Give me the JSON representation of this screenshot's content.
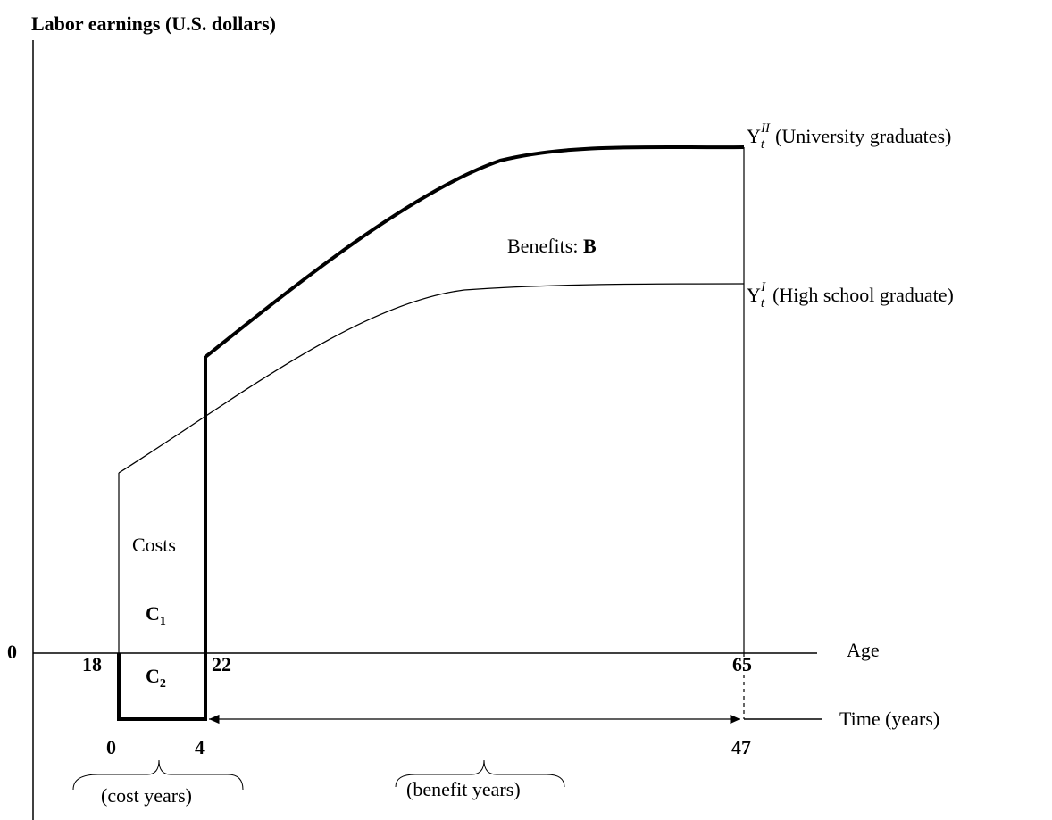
{
  "title": "Labor earnings (U.S. dollars)",
  "curves": [
    {
      "symbol": "Y",
      "sub": "t",
      "sup": "II",
      "label": "(University graduates)"
    },
    {
      "symbol": "Y",
      "sub": "t",
      "sup": "I",
      "label": "(High school graduate)"
    }
  ],
  "benefits": {
    "text": "Benefits:",
    "symbol": "B"
  },
  "costs": {
    "text": "Costs",
    "c1": "C",
    "c1_sub": "1",
    "c2": "C",
    "c2_sub": "2"
  },
  "y_origin": "0",
  "age_axis": {
    "label": "Age",
    "ticks": [
      "18",
      "22",
      "65"
    ]
  },
  "time_axis": {
    "label": "Time (years)",
    "ticks": [
      "0",
      "4",
      "47"
    ]
  },
  "periods": [
    "(cost years)",
    "(benefit years)"
  ]
}
